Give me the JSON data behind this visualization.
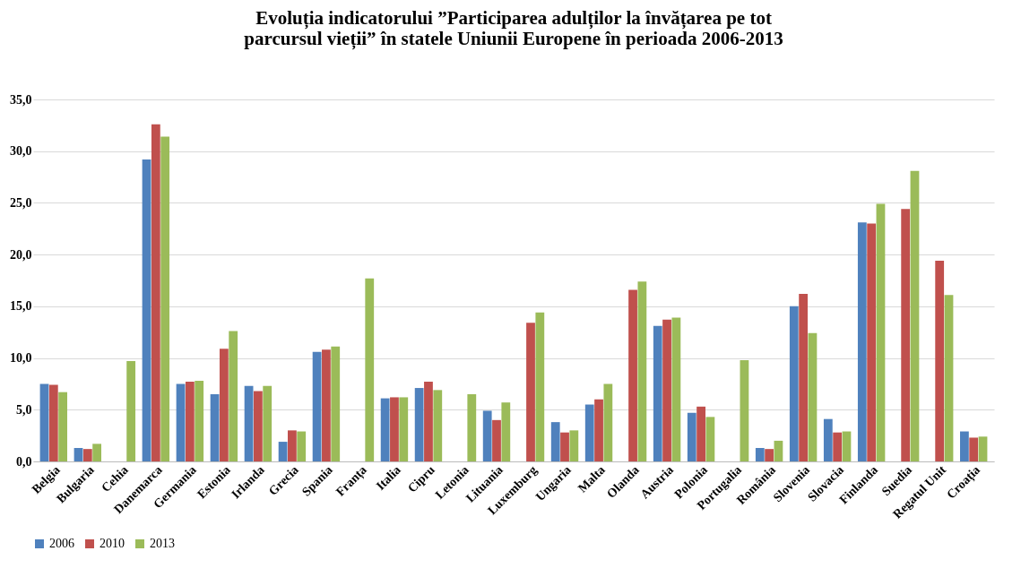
{
  "chart_data": {
    "type": "bar",
    "title": [
      "Evoluția indicatorului ”Participarea adulților la învățarea pe tot",
      "parcursul vieții” în statele Uniunii Europene în perioada 2006-2013"
    ],
    "categories": [
      "Belgia",
      "Bulgaria",
      "Cehia",
      "Danemarca",
      "Germania",
      "Estonia",
      "Irlanda",
      "Grecia",
      "Spania",
      "Franța",
      "Italia",
      "Cipru",
      "Letonia",
      "Lituania",
      "Luxemburg",
      "Ungaria",
      "Malta",
      "Olanda",
      "Austria",
      "Polonia",
      "Portugalia",
      "România",
      "Slovenia",
      "Slovacia",
      "Finlanda",
      "Suedia",
      "Regatul Unit",
      "Croația"
    ],
    "series": [
      {
        "name": "2006",
        "color": "#4f81bd",
        "values": [
          7.5,
          1.3,
          null,
          29.2,
          7.5,
          6.5,
          7.3,
          1.9,
          10.6,
          null,
          6.1,
          7.1,
          null,
          4.9,
          null,
          3.8,
          5.5,
          null,
          13.1,
          4.7,
          null,
          1.3,
          15.0,
          4.1,
          23.1,
          null,
          null,
          2.9
        ]
      },
      {
        "name": "2010",
        "color": "#c0504d",
        "values": [
          7.4,
          1.2,
          null,
          32.6,
          7.7,
          10.9,
          6.8,
          3.0,
          10.8,
          null,
          6.2,
          7.7,
          null,
          4.0,
          13.4,
          2.8,
          6.0,
          16.6,
          13.7,
          5.3,
          null,
          1.2,
          16.2,
          2.8,
          23.0,
          24.4,
          19.4,
          2.3
        ]
      },
      {
        "name": "2013",
        "color": "#9bbb59",
        "values": [
          6.7,
          1.7,
          9.7,
          31.4,
          7.8,
          12.6,
          7.3,
          2.9,
          11.1,
          17.7,
          6.2,
          6.9,
          6.5,
          5.7,
          14.4,
          3.0,
          7.5,
          17.4,
          13.9,
          4.3,
          9.8,
          2.0,
          12.4,
          2.9,
          24.9,
          28.1,
          16.1,
          2.4
        ]
      }
    ],
    "ylim": [
      0,
      35
    ],
    "yticks": [
      {
        "value": 0,
        "label": "0,0"
      },
      {
        "value": 5,
        "label": "5,0"
      },
      {
        "value": 10,
        "label": "10,0"
      },
      {
        "value": 15,
        "label": "15,0"
      },
      {
        "value": 20,
        "label": "20,0"
      },
      {
        "value": 25,
        "label": "25,0"
      },
      {
        "value": 30,
        "label": "30,0"
      },
      {
        "value": 35,
        "label": "35,0"
      }
    ],
    "grid": "y",
    "legend": "bottom"
  }
}
